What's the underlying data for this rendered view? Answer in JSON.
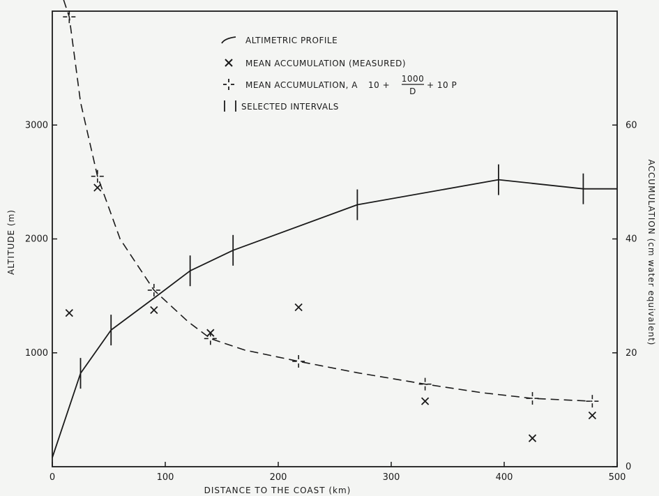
{
  "chart_data": {
    "type": "line",
    "title": "",
    "xlabel": "DISTANCE TO THE COAST (km)",
    "ylabel": "ALTITUDE (m)",
    "y2label": "ACCUMULATION (cm water equivalent)",
    "xlim": [
      0,
      500
    ],
    "ylim": [
      0,
      4000
    ],
    "y2lim": [
      0,
      80
    ],
    "x_ticks": [
      0,
      100,
      200,
      300,
      400,
      500
    ],
    "y_ticks": [
      1000,
      2000,
      3000
    ],
    "y2_ticks": [
      0,
      20,
      40,
      60
    ],
    "grid": false,
    "legend_placement": "top-center",
    "legend": {
      "profile": "ALTIMETRIC PROFILE",
      "measured": "MEAN ACCUMULATION (MEASURED)",
      "model_prefix": "MEAN ACCUMULATION, A",
      "model_num": "1000",
      "model_den": "D",
      "model_a": "10 +",
      "model_b": "+ 10 P",
      "intervals": "SELECTED INTERVALS"
    },
    "series": [
      {
        "name": "ALTIMETRIC PROFILE",
        "axis": "left",
        "style": "solid",
        "x": [
          0,
          25,
          52,
          90,
          122,
          160,
          270,
          395,
          470,
          500
        ],
        "y": [
          80,
          820,
          1200,
          1480,
          1720,
          1900,
          2300,
          2520,
          2440,
          2440
        ]
      },
      {
        "name": "MEAN ACCUMULATION (MEASURED)",
        "axis": "right",
        "style": "x-marker",
        "x": [
          15,
          40,
          90,
          140,
          218,
          330,
          425,
          478
        ],
        "y": [
          27,
          49,
          27.5,
          23.5,
          28,
          11.5,
          5,
          9
        ]
      },
      {
        "name": "MEAN ACCUMULATION, A 10 + 1000/D + 10P",
        "axis": "right",
        "style": "dashed",
        "x": [
          10,
          15,
          25,
          40,
          60,
          90,
          120,
          140,
          170,
          218,
          270,
          330,
          380,
          425,
          478
        ],
        "y": [
          82,
          79,
          64,
          51,
          40,
          31,
          25.5,
          22.5,
          20.5,
          18.5,
          16.5,
          14.5,
          13,
          12,
          11.5
        ]
      },
      {
        "name": "SELECTED INTERVALS",
        "style": "tick",
        "x": [
          25,
          52,
          122,
          160,
          270,
          395,
          470
        ]
      }
    ]
  }
}
